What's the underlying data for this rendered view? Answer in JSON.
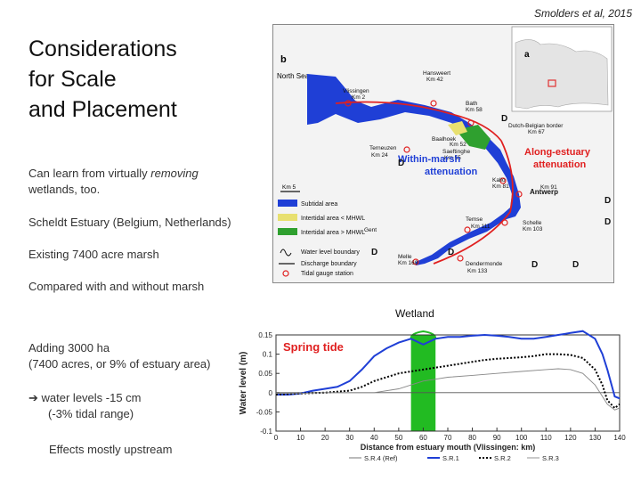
{
  "citation": "Smolders et al, 2015",
  "title_lines": [
    "Considerations",
    "for Scale",
    "and Placement"
  ],
  "bullets": {
    "b1_prefix": "Can learn from virtually ",
    "b1_em": "removing",
    "b1_suffix": "wetlands, too.",
    "b2": "Scheldt Estuary (Belgium, Netherlands)",
    "b3": "Existing 7400 acre marsh",
    "b4": "Compared with and without marsh",
    "b5_line1": "Adding 3000 ha",
    "b5_line2": "(7400 acres, or 9% of estuary area)",
    "b6_arrow": "➔",
    "b6_line1": "water levels  -15 cm",
    "b6_line2": "(-3% tidal range)",
    "b7": "Effects mostly upstream"
  },
  "map": {
    "panel_b": "b",
    "panel_a": "a",
    "north_sea": "North Sea",
    "places": [
      {
        "name": "Vlissingen",
        "km": "Km 2"
      },
      {
        "name": "Hansweert",
        "km": "Km 42"
      },
      {
        "name": "Bath",
        "km": "Km 58"
      },
      {
        "name": "Terneuzen",
        "km": "Km 24"
      },
      {
        "name": "Baalhoek",
        "km": "Km 52"
      },
      {
        "name": "Saeftinghe",
        "km": "Km 55"
      },
      {
        "name": "Dutch-Belgian border",
        "km": "Km 67"
      },
      {
        "name": "Kallo",
        "km": "Km 81"
      },
      {
        "name": "Antwerp",
        "km": "Km 91"
      },
      {
        "name": "Temse",
        "km": "Km 111"
      },
      {
        "name": "Schelle",
        "km": "Km 103"
      },
      {
        "name": "Gent",
        "km": ""
      },
      {
        "name": "Melle",
        "km": "Km 160"
      },
      {
        "name": "Dendermonde",
        "km": "Km 133"
      }
    ],
    "within_marsh": [
      "Within-marsh",
      "attenuation"
    ],
    "along_estuary": [
      "Along-estuary",
      "attenuation"
    ],
    "scale": "Km 5",
    "legend": [
      {
        "label": "Subtidal area",
        "color": "#1f3fd6"
      },
      {
        "label": "Intertidal area < MHWL",
        "color": "#e8e070"
      },
      {
        "label": "Intertidal area > MHWL",
        "color": "#2fa02f"
      },
      {
        "label": "Water level boundary",
        "color": ""
      },
      {
        "label": "Discharge boundary",
        "color": ""
      },
      {
        "label": "Tidal gauge station",
        "color": "#e23b3b"
      }
    ],
    "d_label": "D"
  },
  "wetland_label": "Wetland",
  "chart_data": {
    "type": "line",
    "title": "Spring tide",
    "xlabel": "Distance from estuary mouth (Vlissingen: km)",
    "ylabel": "Water level (m)",
    "xlim": [
      0,
      140
    ],
    "ylim": [
      -0.1,
      0.15
    ],
    "xticks": [
      "0",
      "10",
      "20",
      "30",
      "40",
      "50",
      "60",
      "70",
      "80",
      "90",
      "100",
      "110",
      "120",
      "130",
      "140"
    ],
    "yticks": [
      "0.15",
      "0.1",
      "0.05",
      "0",
      "-0.05",
      "-0.1"
    ],
    "wetland_band": [
      55,
      65
    ],
    "colors": {
      "sr1": "#1f3fd6",
      "sr2": "#000000",
      "sr3": "#888888",
      "band": "#22bb22",
      "title": "#e02020"
    },
    "series": [
      {
        "name": "S.R.4 (Ref)",
        "x": [
          0,
          10,
          20,
          30,
          35,
          40,
          50,
          55,
          60,
          65,
          70,
          80,
          90,
          100,
          110,
          115,
          120,
          125,
          130,
          135,
          140
        ],
        "y": [
          0,
          0,
          0,
          0,
          0,
          0,
          0,
          0,
          0,
          0,
          0,
          0,
          0,
          0,
          0,
          0,
          0,
          0,
          0,
          0,
          0
        ]
      },
      {
        "name": "S.R.1",
        "x": [
          0,
          5,
          10,
          15,
          20,
          25,
          30,
          35,
          40,
          45,
          50,
          55,
          60,
          65,
          70,
          75,
          80,
          85,
          90,
          95,
          100,
          105,
          110,
          115,
          120,
          125,
          130,
          133,
          135,
          138,
          140
        ],
        "y": [
          -0.005,
          -0.005,
          -0.002,
          0.005,
          0.01,
          0.015,
          0.03,
          0.06,
          0.095,
          0.115,
          0.13,
          0.14,
          0.125,
          0.14,
          0.145,
          0.145,
          0.148,
          0.15,
          0.148,
          0.145,
          0.14,
          0.14,
          0.145,
          0.15,
          0.155,
          0.16,
          0.14,
          0.1,
          0.06,
          -0.01,
          -0.015
        ]
      },
      {
        "name": "S.R.2",
        "x": [
          0,
          10,
          20,
          30,
          35,
          40,
          45,
          50,
          55,
          60,
          65,
          70,
          75,
          80,
          85,
          90,
          95,
          100,
          105,
          110,
          115,
          120,
          125,
          130,
          133,
          135,
          138,
          140
        ],
        "y": [
          -0.005,
          -0.002,
          0,
          0.005,
          0.015,
          0.03,
          0.04,
          0.05,
          0.055,
          0.06,
          0.065,
          0.07,
          0.075,
          0.08,
          0.085,
          0.088,
          0.09,
          0.092,
          0.095,
          0.1,
          0.1,
          0.098,
          0.09,
          0.06,
          0.02,
          -0.02,
          -0.04,
          -0.03
        ]
      },
      {
        "name": "S.R.3",
        "x": [
          0,
          10,
          20,
          30,
          40,
          50,
          55,
          60,
          65,
          70,
          80,
          90,
          100,
          110,
          115,
          120,
          125,
          130,
          133,
          135,
          138,
          140
        ],
        "y": [
          -0.002,
          -0.002,
          0,
          0,
          0,
          0.01,
          0.02,
          0.03,
          0.035,
          0.04,
          0.045,
          0.05,
          0.055,
          0.06,
          0.062,
          0.06,
          0.05,
          0.02,
          -0.01,
          -0.03,
          -0.045,
          -0.04
        ]
      }
    ]
  }
}
